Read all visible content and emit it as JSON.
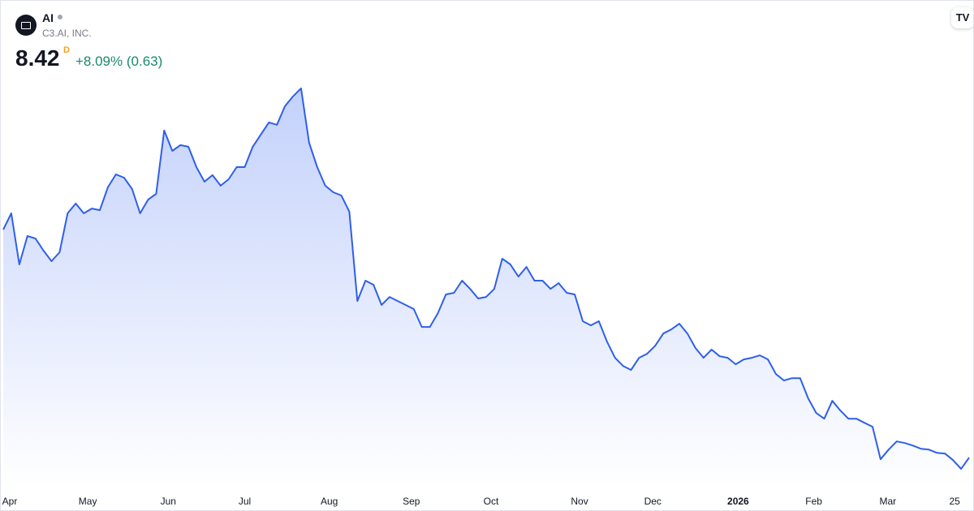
{
  "header": {
    "symbol": "AI",
    "company": "C3.AI, INC.",
    "price": "8.42",
    "interval": "D",
    "change": "+8.09% (0.63)"
  },
  "chart_data": {
    "type": "area-line",
    "color": "#2f5fe8",
    "values": [
      21.19,
      22.1,
      19.24,
      20.83,
      20.69,
      20.01,
      19.42,
      19.92,
      22.1,
      22.65,
      22.1,
      22.37,
      22.28,
      23.56,
      24.28,
      24.1,
      23.47,
      22.1,
      22.87,
      23.19,
      26.74,
      25.6,
      25.92,
      25.83,
      24.69,
      23.87,
      24.24,
      23.65,
      24.01,
      24.69,
      24.69,
      25.83,
      26.51,
      27.19,
      27.06,
      28.1,
      28.65,
      29.1,
      26.06,
      24.69,
      23.65,
      23.28,
      23.1,
      22.19,
      17.19,
      18.33,
      18.1,
      16.97,
      17.42,
      17.19,
      16.97,
      16.74,
      15.74,
      15.74,
      16.51,
      17.56,
      17.65,
      18.33,
      17.87,
      17.33,
      17.42,
      17.87,
      19.56,
      19.24,
      18.56,
      19.1,
      18.33,
      18.33,
      17.87,
      18.19,
      17.65,
      17.56,
      16.06,
      15.83,
      16.06,
      14.92,
      14.01,
      13.56,
      13.33,
      14.01,
      14.24,
      14.69,
      15.37,
      15.6,
      15.92,
      15.37,
      14.56,
      14.01,
      14.47,
      14.1,
      14.01,
      13.65,
      13.92,
      14.01,
      14.15,
      13.92,
      13.1,
      12.74,
      12.87,
      12.87,
      11.74,
      10.92,
      10.6,
      11.6,
      11.06,
      10.6,
      10.6,
      10.37,
      10.15,
      8.33,
      8.87,
      9.33,
      9.24,
      9.1,
      8.92,
      8.87,
      8.69,
      8.65,
      8.28,
      7.79,
      8.42
    ],
    "xlim": [
      0,
      120
    ],
    "ylim": [
      6.75,
      34
    ],
    "xticks": [
      {
        "value": 0.8,
        "label": "Apr"
      },
      {
        "value": 10.5,
        "label": "May"
      },
      {
        "value": 20.5,
        "label": "Jun"
      },
      {
        "value": 30,
        "label": "Jul"
      },
      {
        "value": 40.5,
        "label": "Aug"
      },
      {
        "value": 50.7,
        "label": "Sep"
      },
      {
        "value": 60.6,
        "label": "Oct"
      },
      {
        "value": 71.6,
        "label": "Nov"
      },
      {
        "value": 80.7,
        "label": "Dec"
      },
      {
        "value": 91.3,
        "label": "2026"
      },
      {
        "value": 100.7,
        "label": "Feb"
      },
      {
        "value": 109.9,
        "label": "Mar"
      },
      {
        "value": 118.2,
        "label": "25"
      }
    ]
  }
}
